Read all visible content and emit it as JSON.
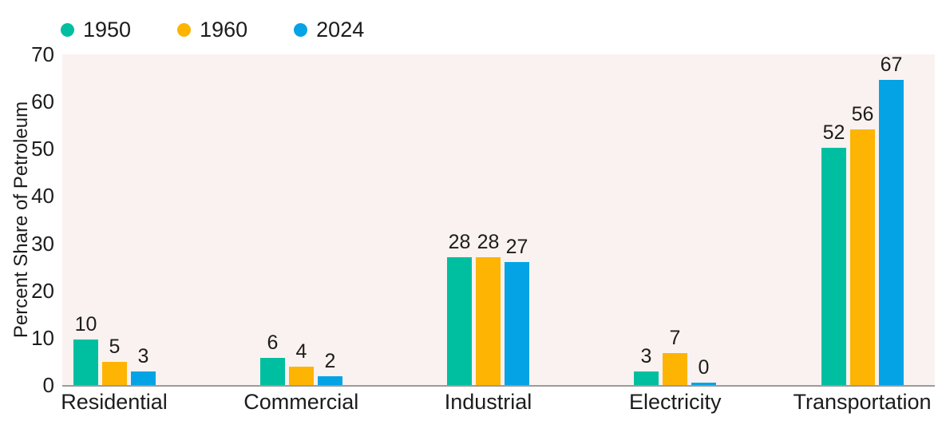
{
  "chart_data": {
    "type": "bar",
    "title": "",
    "xlabel": "",
    "ylabel": "Percent Share of Petroleum",
    "categories": [
      "Residential",
      "Commercial",
      "Industrial",
      "Electricity",
      "Transportation"
    ],
    "series": [
      {
        "name": "1950",
        "color": "#00BFA0",
        "values": [
          10,
          6,
          28,
          3,
          52
        ]
      },
      {
        "name": "1960",
        "color": "#FDB402",
        "values": [
          5,
          4,
          28,
          7,
          56
        ]
      },
      {
        "name": "2024",
        "color": "#04A3E5",
        "values": [
          3,
          2,
          27,
          0,
          67
        ]
      }
    ],
    "ylim": [
      0,
      70
    ],
    "yticks": [
      0,
      10,
      20,
      30,
      40,
      50,
      60,
      70
    ],
    "grid": false,
    "bar_labels": true,
    "legend_position": "top-left",
    "colors": {
      "plot_background": "#FAF2F0",
      "axis_line": "#9B9B9B",
      "text": "#1c1c1c"
    }
  }
}
